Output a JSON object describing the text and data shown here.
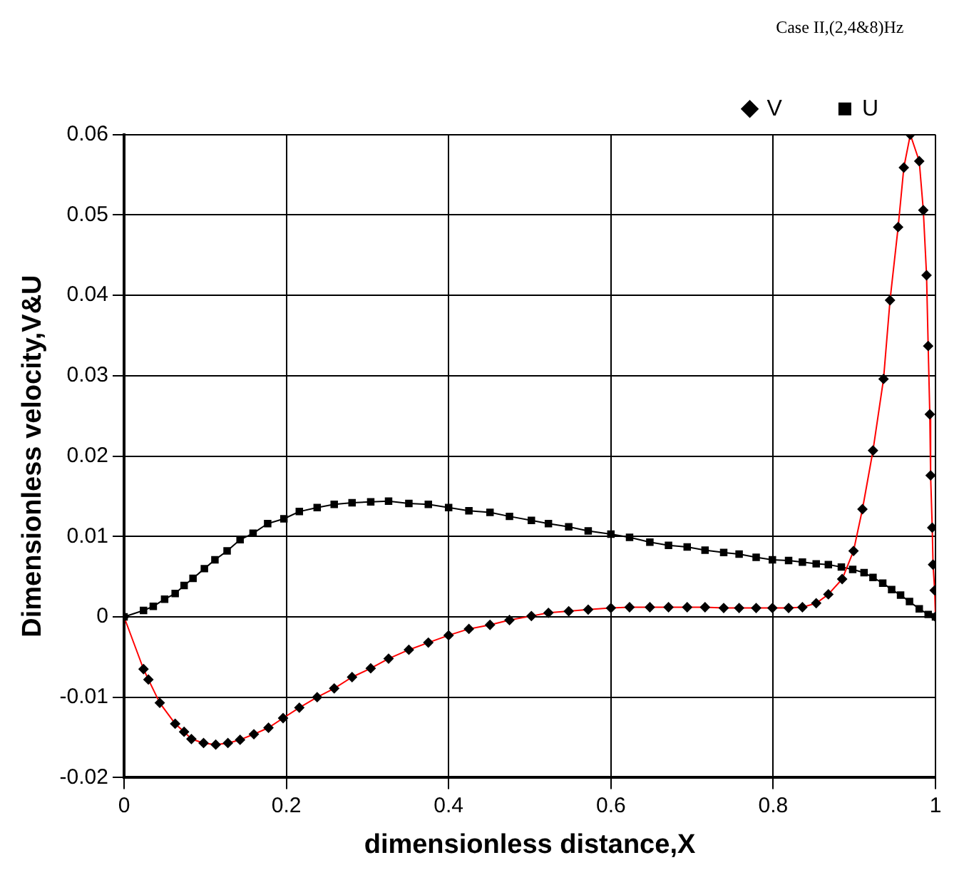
{
  "chart_data": {
    "type": "line",
    "xlabel": "dimensionless distance,X",
    "ylabel": "Dimensionless velocity,V&U",
    "legend_title": "Case II,(2,4&8)Hz",
    "legend": "top right",
    "grid": true,
    "xlim": [
      0,
      1
    ],
    "xticks": [
      0,
      0.2,
      0.4,
      0.6,
      0.8,
      1
    ],
    "ylim": [
      -0.02,
      0.06
    ],
    "yticks": [
      -0.02,
      -0.01,
      0,
      0.01,
      0.02,
      0.03,
      0.04,
      0.05,
      0.06
    ],
    "series": [
      {
        "name": "V",
        "color": "#ff0000",
        "marker": "diamond",
        "x": [
          0,
          0.024,
          0.03,
          0.044,
          0.063,
          0.074,
          0.083,
          0.098,
          0.113,
          0.128,
          0.143,
          0.16,
          0.178,
          0.196,
          0.216,
          0.238,
          0.259,
          0.281,
          0.304,
          0.326,
          0.351,
          0.375,
          0.4,
          0.425,
          0.451,
          0.475,
          0.502,
          0.523,
          0.548,
          0.572,
          0.6,
          0.623,
          0.648,
          0.671,
          0.694,
          0.716,
          0.739,
          0.758,
          0.779,
          0.799,
          0.819,
          0.836,
          0.853,
          0.868,
          0.885,
          0.899,
          0.91,
          0.923,
          0.936,
          0.944,
          0.954,
          0.961,
          0.969,
          0.98,
          0.985,
          0.989,
          0.991,
          0.993,
          0.994,
          0.996,
          0.997,
          0.999,
          1
        ],
        "values": [
          0,
          -0.0065,
          -0.0078,
          -0.0107,
          -0.0133,
          -0.0143,
          -0.0152,
          -0.0157,
          -0.0159,
          -0.0157,
          -0.0153,
          -0.0146,
          -0.0138,
          -0.0126,
          -0.0113,
          -0.01,
          -0.0089,
          -0.0075,
          -0.0064,
          -0.0052,
          -0.0041,
          -0.0032,
          -0.0023,
          -0.0015,
          -0.001,
          -0.0004,
          0.0001,
          0.0005,
          0.0007,
          0.0009,
          0.0011,
          0.0012,
          0.0012,
          0.0012,
          0.0012,
          0.0012,
          0.0011,
          0.0011,
          0.0011,
          0.0011,
          0.0011,
          0.0012,
          0.0017,
          0.0028,
          0.0047,
          0.0082,
          0.0134,
          0.0207,
          0.0296,
          0.0394,
          0.0485,
          0.0559,
          0.06,
          0.0567,
          0.0506,
          0.0425,
          0.0337,
          0.0252,
          0.0176,
          0.0111,
          0.0065,
          0.0033,
          0
        ]
      },
      {
        "name": "U",
        "color": "#000000",
        "marker": "square",
        "x": [
          0,
          0.024,
          0.036,
          0.05,
          0.063,
          0.074,
          0.085,
          0.099,
          0.112,
          0.127,
          0.143,
          0.159,
          0.177,
          0.197,
          0.216,
          0.238,
          0.259,
          0.281,
          0.304,
          0.326,
          0.351,
          0.375,
          0.4,
          0.425,
          0.451,
          0.475,
          0.502,
          0.523,
          0.548,
          0.572,
          0.6,
          0.623,
          0.648,
          0.671,
          0.694,
          0.716,
          0.739,
          0.758,
          0.779,
          0.799,
          0.819,
          0.836,
          0.853,
          0.868,
          0.884,
          0.898,
          0.912,
          0.923,
          0.935,
          0.946,
          0.957,
          0.968,
          0.98,
          0.991,
          1
        ],
        "values": [
          0,
          0.0008,
          0.0013,
          0.0022,
          0.0029,
          0.0039,
          0.0048,
          0.006,
          0.0071,
          0.0082,
          0.0096,
          0.0104,
          0.0116,
          0.0122,
          0.0131,
          0.0136,
          0.014,
          0.0142,
          0.0143,
          0.0144,
          0.0141,
          0.014,
          0.0136,
          0.0132,
          0.013,
          0.0125,
          0.012,
          0.0116,
          0.0112,
          0.0107,
          0.0103,
          0.0099,
          0.0093,
          0.0089,
          0.0087,
          0.0083,
          0.008,
          0.0078,
          0.0074,
          0.0071,
          0.007,
          0.0068,
          0.0066,
          0.0065,
          0.0062,
          0.0059,
          0.0055,
          0.0049,
          0.0042,
          0.0034,
          0.0027,
          0.0019,
          0.001,
          0.0003,
          0
        ]
      }
    ]
  }
}
